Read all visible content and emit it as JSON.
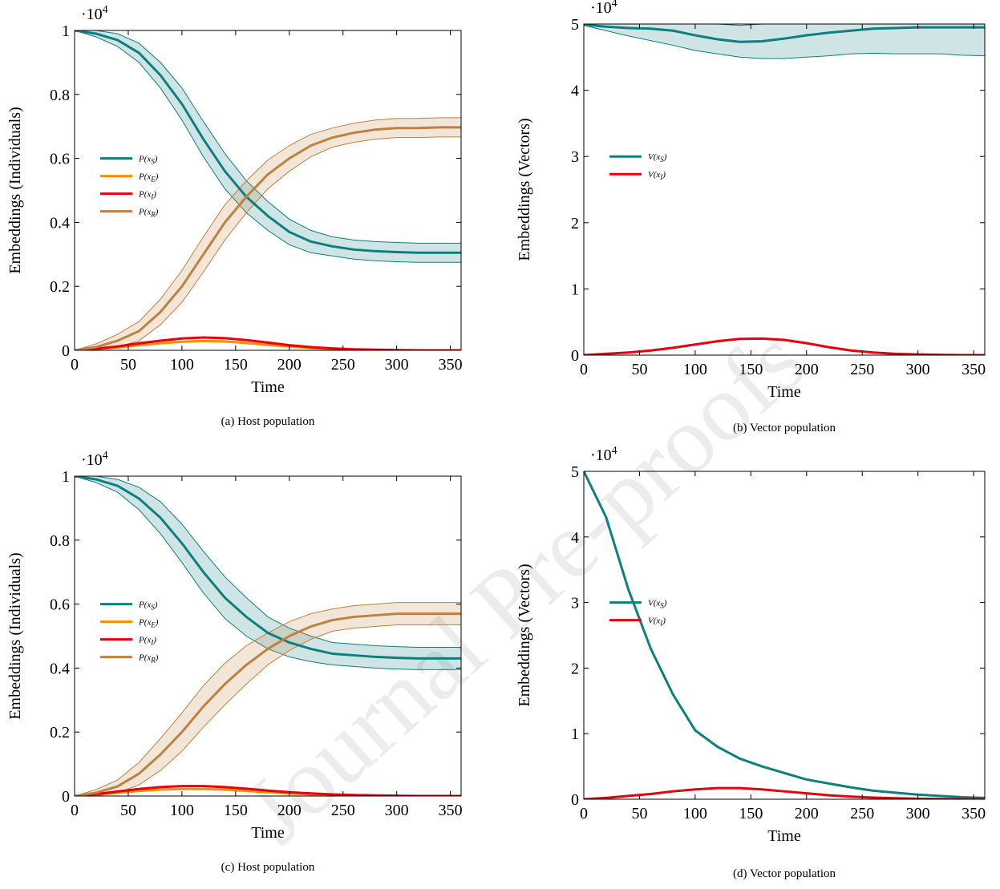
{
  "chart_data": [
    {
      "type": "line",
      "caption": "(a) Host population",
      "xlabel": "Time",
      "ylabel": "Embeddings (Individuals)",
      "y_scale_label": "·104",
      "xlim": [
        0,
        360
      ],
      "xticks": [
        0,
        50,
        100,
        150,
        200,
        250,
        300,
        350
      ],
      "ylim": [
        0,
        1
      ],
      "yticks": [
        0,
        0.2,
        0.4,
        0.6,
        0.8,
        1
      ],
      "legend": "west",
      "x": [
        0,
        20,
        40,
        60,
        80,
        100,
        120,
        140,
        160,
        180,
        200,
        220,
        240,
        260,
        280,
        300,
        320,
        340,
        360
      ],
      "series": [
        {
          "name": "P(xS)",
          "color": "#0e7f7f",
          "values": [
            1.0,
            0.99,
            0.97,
            0.93,
            0.86,
            0.77,
            0.66,
            0.56,
            0.48,
            0.42,
            0.37,
            0.34,
            0.325,
            0.315,
            0.31,
            0.307,
            0.305,
            0.305,
            0.305
          ],
          "lower": [
            1.0,
            0.98,
            0.95,
            0.9,
            0.82,
            0.72,
            0.605,
            0.505,
            0.43,
            0.375,
            0.33,
            0.305,
            0.295,
            0.285,
            0.28,
            0.277,
            0.275,
            0.275,
            0.275
          ],
          "upper": [
            1.0,
            1.0,
            0.99,
            0.96,
            0.9,
            0.82,
            0.715,
            0.615,
            0.53,
            0.465,
            0.41,
            0.375,
            0.355,
            0.345,
            0.34,
            0.337,
            0.335,
            0.335,
            0.335
          ]
        },
        {
          "name": "P(xE)",
          "color": "#ff8c00",
          "values": [
            0,
            0.004,
            0.009,
            0.016,
            0.022,
            0.027,
            0.029,
            0.028,
            0.023,
            0.017,
            0.012,
            0.007,
            0.004,
            0.002,
            0.001,
            0,
            0,
            0,
            0
          ]
        },
        {
          "name": "P(xI)",
          "color": "#e8000b",
          "values": [
            0,
            0.005,
            0.012,
            0.022,
            0.03,
            0.037,
            0.04,
            0.038,
            0.032,
            0.024,
            0.016,
            0.01,
            0.006,
            0.003,
            0.002,
            0.001,
            0,
            0,
            0
          ]
        },
        {
          "name": "P(xR)",
          "color": "#c0803f",
          "values": [
            0,
            0.01,
            0.03,
            0.06,
            0.12,
            0.2,
            0.3,
            0.4,
            0.48,
            0.55,
            0.6,
            0.64,
            0.665,
            0.68,
            0.69,
            0.695,
            0.695,
            0.697,
            0.697
          ],
          "lower": [
            0,
            0,
            0.01,
            0.03,
            0.08,
            0.15,
            0.245,
            0.345,
            0.43,
            0.505,
            0.56,
            0.605,
            0.635,
            0.65,
            0.66,
            0.665,
            0.665,
            0.667,
            0.667
          ],
          "upper": [
            0,
            0.02,
            0.05,
            0.09,
            0.16,
            0.25,
            0.355,
            0.455,
            0.53,
            0.595,
            0.64,
            0.675,
            0.695,
            0.71,
            0.72,
            0.725,
            0.725,
            0.727,
            0.727
          ]
        }
      ]
    },
    {
      "type": "line",
      "caption": "(b) Vector population",
      "xlabel": "Time",
      "ylabel": "Embeddings (Vectors)",
      "y_scale_label": "·104",
      "xlim": [
        0,
        360
      ],
      "xticks": [
        0,
        50,
        100,
        150,
        200,
        250,
        300,
        350
      ],
      "ylim": [
        0,
        5
      ],
      "yticks": [
        0,
        1,
        2,
        3,
        4,
        5
      ],
      "legend": "west",
      "x": [
        0,
        20,
        40,
        60,
        80,
        100,
        120,
        140,
        160,
        180,
        200,
        220,
        240,
        260,
        280,
        300,
        320,
        340,
        360
      ],
      "series": [
        {
          "name": "V(xS)",
          "color": "#0e7f7f",
          "values": [
            4.99,
            4.96,
            4.94,
            4.93,
            4.9,
            4.83,
            4.77,
            4.73,
            4.74,
            4.78,
            4.83,
            4.87,
            4.9,
            4.93,
            4.94,
            4.95,
            4.95,
            4.95,
            4.95
          ],
          "lower": [
            4.98,
            4.9,
            4.82,
            4.75,
            4.68,
            4.6,
            4.55,
            4.5,
            4.48,
            4.48,
            4.5,
            4.52,
            4.55,
            4.56,
            4.55,
            4.55,
            4.55,
            4.53,
            4.52
          ],
          "upper": [
            5,
            5,
            5,
            5,
            5,
            5,
            5,
            4.98,
            5,
            5,
            5,
            5,
            5,
            5,
            5,
            5,
            5,
            5,
            5
          ]
        },
        {
          "name": "V(xI)",
          "color": "#e8000b",
          "values": [
            0,
            0.02,
            0.04,
            0.07,
            0.11,
            0.16,
            0.21,
            0.245,
            0.25,
            0.23,
            0.18,
            0.12,
            0.07,
            0.04,
            0.02,
            0.01,
            0.005,
            0,
            0
          ]
        }
      ]
    },
    {
      "type": "line",
      "caption": "(c) Host population",
      "xlabel": "Time",
      "ylabel": "Embeddings (Individuals)",
      "y_scale_label": "·104",
      "xlim": [
        0,
        360
      ],
      "xticks": [
        0,
        50,
        100,
        150,
        200,
        250,
        300,
        350
      ],
      "ylim": [
        0,
        1
      ],
      "yticks": [
        0,
        0.2,
        0.4,
        0.6,
        0.8,
        1
      ],
      "legend": "west",
      "x": [
        0,
        20,
        40,
        60,
        80,
        100,
        120,
        140,
        160,
        180,
        200,
        220,
        240,
        260,
        280,
        300,
        320,
        340,
        360
      ],
      "series": [
        {
          "name": "P(xS)",
          "color": "#0e7f7f",
          "values": [
            1,
            0.99,
            0.97,
            0.93,
            0.87,
            0.79,
            0.7,
            0.62,
            0.56,
            0.51,
            0.48,
            0.46,
            0.445,
            0.44,
            0.435,
            0.432,
            0.43,
            0.43,
            0.43
          ],
          "lower": [
            1,
            0.98,
            0.95,
            0.895,
            0.82,
            0.73,
            0.635,
            0.555,
            0.5,
            0.46,
            0.435,
            0.42,
            0.41,
            0.405,
            0.4,
            0.397,
            0.395,
            0.395,
            0.395
          ],
          "upper": [
            1,
            1,
            0.99,
            0.965,
            0.92,
            0.85,
            0.765,
            0.685,
            0.62,
            0.56,
            0.525,
            0.5,
            0.48,
            0.475,
            0.47,
            0.467,
            0.465,
            0.465,
            0.465
          ]
        },
        {
          "name": "P(xE)",
          "color": "#ff8c00",
          "values": [
            0,
            0.004,
            0.01,
            0.016,
            0.02,
            0.022,
            0.022,
            0.02,
            0.016,
            0.012,
            0.008,
            0.005,
            0.003,
            0.002,
            0.001,
            0,
            0,
            0,
            0
          ]
        },
        {
          "name": "P(xI)",
          "color": "#e8000b",
          "values": [
            0,
            0.006,
            0.014,
            0.022,
            0.028,
            0.031,
            0.031,
            0.028,
            0.023,
            0.017,
            0.012,
            0.008,
            0.005,
            0.003,
            0.002,
            0.001,
            0,
            0,
            0
          ]
        },
        {
          "name": "P(xR)",
          "color": "#c0803f",
          "values": [
            0,
            0.01,
            0.03,
            0.07,
            0.13,
            0.2,
            0.28,
            0.35,
            0.41,
            0.46,
            0.5,
            0.53,
            0.55,
            0.56,
            0.565,
            0.57,
            0.57,
            0.57,
            0.57
          ],
          "lower": [
            0,
            0,
            0.01,
            0.035,
            0.08,
            0.14,
            0.215,
            0.285,
            0.35,
            0.41,
            0.455,
            0.49,
            0.515,
            0.525,
            0.53,
            0.535,
            0.535,
            0.535,
            0.535
          ],
          "upper": [
            0,
            0.02,
            0.05,
            0.105,
            0.18,
            0.26,
            0.345,
            0.415,
            0.47,
            0.51,
            0.545,
            0.57,
            0.585,
            0.595,
            0.6,
            0.605,
            0.605,
            0.605,
            0.605
          ]
        }
      ]
    },
    {
      "type": "line",
      "caption": "(d) Vector population",
      "xlabel": "Time",
      "ylabel": "Embeddings (Vectors)",
      "y_scale_label": "·104",
      "xlim": [
        0,
        360
      ],
      "xticks": [
        0,
        50,
        100,
        150,
        200,
        250,
        300,
        350
      ],
      "ylim": [
        0,
        5
      ],
      "yticks": [
        0,
        1,
        2,
        3,
        4,
        5
      ],
      "legend": "west",
      "x": [
        0,
        20,
        40,
        60,
        80,
        100,
        120,
        140,
        160,
        180,
        200,
        220,
        240,
        260,
        280,
        300,
        320,
        340,
        360
      ],
      "series": [
        {
          "name": "V(xS)",
          "color": "#0e7f7f",
          "values": [
            5,
            4.3,
            3.2,
            2.3,
            1.6,
            1.05,
            0.8,
            0.62,
            0.5,
            0.4,
            0.3,
            0.24,
            0.18,
            0.13,
            0.1,
            0.07,
            0.05,
            0.03,
            0.02
          ]
        },
        {
          "name": "V(xI)",
          "color": "#e8000b",
          "values": [
            0,
            0.02,
            0.05,
            0.08,
            0.12,
            0.15,
            0.17,
            0.17,
            0.15,
            0.12,
            0.09,
            0.06,
            0.04,
            0.025,
            0.015,
            0.008,
            0.004,
            0.002,
            0
          ]
        }
      ]
    }
  ],
  "watermark": "Journal Pre-proofs"
}
